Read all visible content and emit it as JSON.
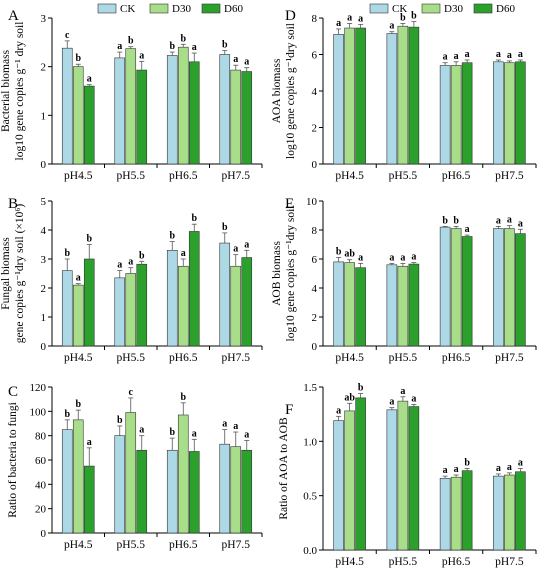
{
  "colors": {
    "CK": "#add8e6",
    "D30": "#a8de8a",
    "D60": "#2ca02c"
  },
  "legend": [
    "CK",
    "D30",
    "D60"
  ],
  "chart_data": [
    {
      "panel": "A",
      "type": "bar",
      "ylabel_lines": [
        "Bacterial biomass",
        "log10 gene copies g⁻¹ dry soil"
      ],
      "categories": [
        "pH4.5",
        "pH5.5",
        "pH6.5",
        "pH7.5"
      ],
      "ylim": [
        0,
        3
      ],
      "yticks": [
        0,
        1,
        2,
        3
      ],
      "series": [
        {
          "name": "CK",
          "values": [
            2.38,
            2.18,
            2.23,
            2.25
          ],
          "err": [
            0.15,
            0.12,
            0.07,
            0.08
          ],
          "letters": [
            "c",
            "a",
            "b",
            "b"
          ]
        },
        {
          "name": "D30",
          "values": [
            2.0,
            2.37,
            2.4,
            1.93
          ],
          "err": [
            0.05,
            0.04,
            0.06,
            0.1
          ],
          "letters": [
            "b",
            "b",
            "b",
            "a"
          ]
        },
        {
          "name": "D60",
          "values": [
            1.6,
            1.93,
            2.1,
            1.9
          ],
          "err": [
            0.03,
            0.18,
            0.18,
            0.08
          ],
          "letters": [
            "a",
            "a",
            "a",
            "a"
          ]
        }
      ]
    },
    {
      "panel": "B",
      "type": "bar",
      "ylabel_lines": [
        "Fungal biomass",
        "gene copies g⁻¹dry soil (×10⁶)"
      ],
      "categories": [
        "pH4.5",
        "pH5.5",
        "pH6.5",
        "pH7.5"
      ],
      "ylim": [
        0,
        5
      ],
      "yticks": [
        0,
        1,
        2,
        3,
        4,
        5
      ],
      "series": [
        {
          "name": "CK",
          "values": [
            2.6,
            2.35,
            3.3,
            3.55
          ],
          "err": [
            0.4,
            0.25,
            0.3,
            0.35
          ],
          "letters": [
            "b",
            "a",
            "b",
            "b"
          ]
        },
        {
          "name": "D30",
          "values": [
            2.1,
            2.5,
            2.75,
            2.75
          ],
          "err": [
            0.05,
            0.2,
            0.25,
            0.4
          ],
          "letters": [
            "a",
            "a",
            "a",
            "a"
          ]
        },
        {
          "name": "D60",
          "values": [
            3.0,
            2.82,
            3.95,
            3.05
          ],
          "err": [
            0.5,
            0.1,
            0.25,
            0.25
          ],
          "letters": [
            "b",
            "b",
            "b",
            "a"
          ]
        }
      ]
    },
    {
      "panel": "C",
      "type": "bar",
      "ylabel_lines": [
        "Ratio of bacteria to fungi"
      ],
      "categories": [
        "pH4.5",
        "pH5.5",
        "pH6.5",
        "pH7.5"
      ],
      "ylim": [
        0,
        120
      ],
      "yticks": [
        0,
        20,
        40,
        60,
        80,
        100,
        120
      ],
      "series": [
        {
          "name": "CK",
          "values": [
            85,
            80,
            68,
            73
          ],
          "err": [
            8,
            8,
            10,
            12
          ],
          "letters": [
            "b",
            "b",
            "b",
            "a"
          ]
        },
        {
          "name": "D30",
          "values": [
            93,
            99,
            97,
            71
          ],
          "err": [
            8,
            12,
            10,
            12
          ],
          "letters": [
            "b",
            "c",
            "b",
            "a"
          ]
        },
        {
          "name": "D60",
          "values": [
            55,
            68,
            67,
            68
          ],
          "err": [
            15,
            12,
            10,
            8
          ],
          "letters": [
            "a",
            "a",
            "a",
            "a"
          ]
        }
      ]
    },
    {
      "panel": "D",
      "type": "bar",
      "ylabel_lines": [
        "AOA biomass",
        "log10 gene copies g⁻¹dry soil"
      ],
      "categories": [
        "pH4.5",
        "pH5.5",
        "pH6.5",
        "pH7.5"
      ],
      "ylim": [
        0,
        8
      ],
      "yticks": [
        0,
        2,
        4,
        6,
        8
      ],
      "series": [
        {
          "name": "CK",
          "values": [
            7.1,
            7.15,
            5.4,
            5.6
          ],
          "err": [
            0.3,
            0.1,
            0.15,
            0.1
          ],
          "letters": [
            "a",
            "a",
            "a",
            "a"
          ]
        },
        {
          "name": "D30",
          "values": [
            7.45,
            7.55,
            5.4,
            5.55
          ],
          "err": [
            0.25,
            0.15,
            0.2,
            0.1
          ],
          "letters": [
            "a",
            "b",
            "a",
            "a"
          ]
        },
        {
          "name": "D60",
          "values": [
            7.45,
            7.5,
            5.55,
            5.6
          ],
          "err": [
            0.2,
            0.3,
            0.15,
            0.1
          ],
          "letters": [
            "a",
            "b",
            "a",
            "a"
          ]
        }
      ]
    },
    {
      "panel": "E",
      "type": "bar",
      "ylabel_lines": [
        "AOB biomass",
        "log10 gene copies g⁻¹dry soil"
      ],
      "categories": [
        "pH4.5",
        "pH5.5",
        "pH6.5",
        "pH7.5"
      ],
      "ylim": [
        0,
        10
      ],
      "yticks": [
        0,
        2,
        4,
        6,
        8,
        10
      ],
      "series": [
        {
          "name": "CK",
          "values": [
            5.8,
            5.6,
            8.2,
            8.1
          ],
          "err": [
            0.3,
            0.1,
            0.05,
            0.15
          ],
          "letters": [
            "b",
            "a",
            "b",
            "a"
          ]
        },
        {
          "name": "D30",
          "values": [
            5.75,
            5.5,
            8.1,
            8.1
          ],
          "err": [
            0.2,
            0.2,
            0.15,
            0.2
          ],
          "letters": [
            "ab",
            "a",
            "b",
            "a"
          ]
        },
        {
          "name": "D60",
          "values": [
            5.4,
            5.65,
            7.55,
            7.75
          ],
          "err": [
            0.3,
            0.1,
            0.1,
            0.3
          ],
          "letters": [
            "a",
            "a",
            "a",
            "a"
          ]
        }
      ]
    },
    {
      "panel": "F",
      "type": "bar",
      "ylabel_lines": [
        "Ratio of AOA to AOB"
      ],
      "categories": [
        "pH4.5",
        "pH5.5",
        "pH6.5",
        "pH7.5"
      ],
      "ylim": [
        0,
        1.5
      ],
      "yticks": [
        0.0,
        0.5,
        1.0,
        1.5
      ],
      "ytick_decimals": 1,
      "series": [
        {
          "name": "CK",
          "values": [
            1.19,
            1.29,
            0.66,
            0.68
          ],
          "err": [
            0.04,
            0.02,
            0.02,
            0.02
          ],
          "letters": [
            "a",
            "a",
            "a",
            "a"
          ]
        },
        {
          "name": "D30",
          "values": [
            1.28,
            1.37,
            0.67,
            0.69
          ],
          "err": [
            0.07,
            0.04,
            0.02,
            0.02
          ],
          "letters": [
            "ab",
            "a",
            "a",
            "a"
          ]
        },
        {
          "name": "D60",
          "values": [
            1.4,
            1.32,
            0.73,
            0.72
          ],
          "err": [
            0.04,
            0.02,
            0.02,
            0.03
          ],
          "letters": [
            "b",
            "a",
            "b",
            "a"
          ]
        }
      ]
    }
  ]
}
